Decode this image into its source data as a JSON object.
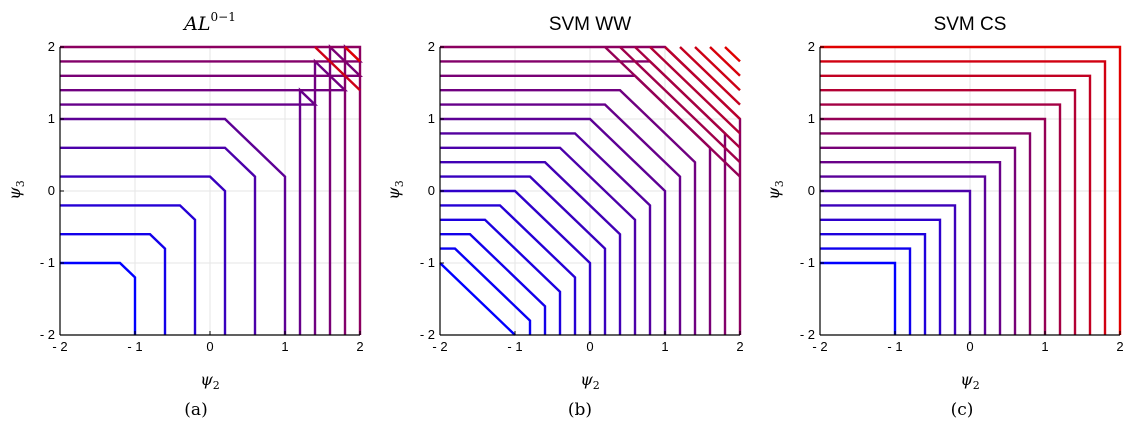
{
  "chart_data": [
    {
      "type": "line",
      "subtype": "contour",
      "title_base": "AL",
      "title_sup": "0−1",
      "xlabel": "ψ",
      "xlabel_sub": "2",
      "ylabel": "ψ",
      "ylabel_sub": "3",
      "caption": "(a)",
      "xlim": [
        -2,
        2
      ],
      "ylim": [
        -2,
        2
      ],
      "xticks": [
        "- 2",
        "- 1",
        "0",
        "1",
        "2"
      ],
      "yticks": [
        "- 2",
        "- 1",
        "0",
        "1",
        "2"
      ],
      "grid": true,
      "levels": [
        -1,
        -0.6,
        -0.2,
        0.2,
        0.6,
        1.0,
        1.2,
        1.4,
        1.6,
        1.8,
        2.0,
        3.4,
        3.8
      ],
      "color_low": "#0000ff",
      "color_high": "#e00000"
    },
    {
      "type": "line",
      "subtype": "contour",
      "title": "SVM WW",
      "xlabel": "ψ",
      "xlabel_sub": "2",
      "ylabel": "ψ",
      "ylabel_sub": "3",
      "caption": "(b)",
      "xlim": [
        -2,
        2
      ],
      "ylim": [
        -2,
        2
      ],
      "xticks": [
        "- 2",
        "- 1",
        "0",
        "1",
        "2"
      ],
      "yticks": [
        "- 2",
        "- 1",
        "0",
        "1",
        "2"
      ],
      "grid": true,
      "levels": [
        -1,
        -0.8,
        -0.6,
        -0.4,
        -0.2,
        0,
        0.2,
        0.4,
        0.6,
        0.8,
        1.0,
        1.2,
        1.4,
        1.6,
        1.8,
        2.0,
        2.2,
        2.4,
        2.6,
        2.8,
        3.0,
        3.2,
        3.4,
        3.6,
        3.8
      ],
      "color_low": "#0000ff",
      "color_high": "#e00000"
    },
    {
      "type": "line",
      "subtype": "contour",
      "title": "SVM CS",
      "xlabel": "ψ",
      "xlabel_sub": "2",
      "ylabel": "ψ",
      "ylabel_sub": "3",
      "caption": "(c)",
      "xlim": [
        -2,
        2
      ],
      "ylim": [
        -2,
        2
      ],
      "xticks": [
        "- 2",
        "- 1",
        "0",
        "1",
        "2"
      ],
      "yticks": [
        "- 2",
        "- 1",
        "0",
        "1",
        "2"
      ],
      "grid": true,
      "levels": [
        -1,
        -0.8,
        -0.6,
        -0.4,
        -0.2,
        0,
        0.2,
        0.4,
        0.6,
        0.8,
        1.0,
        1.2,
        1.4,
        1.6,
        1.8,
        2.0
      ],
      "color_low": "#0000ff",
      "color_high": "#e00000"
    }
  ]
}
